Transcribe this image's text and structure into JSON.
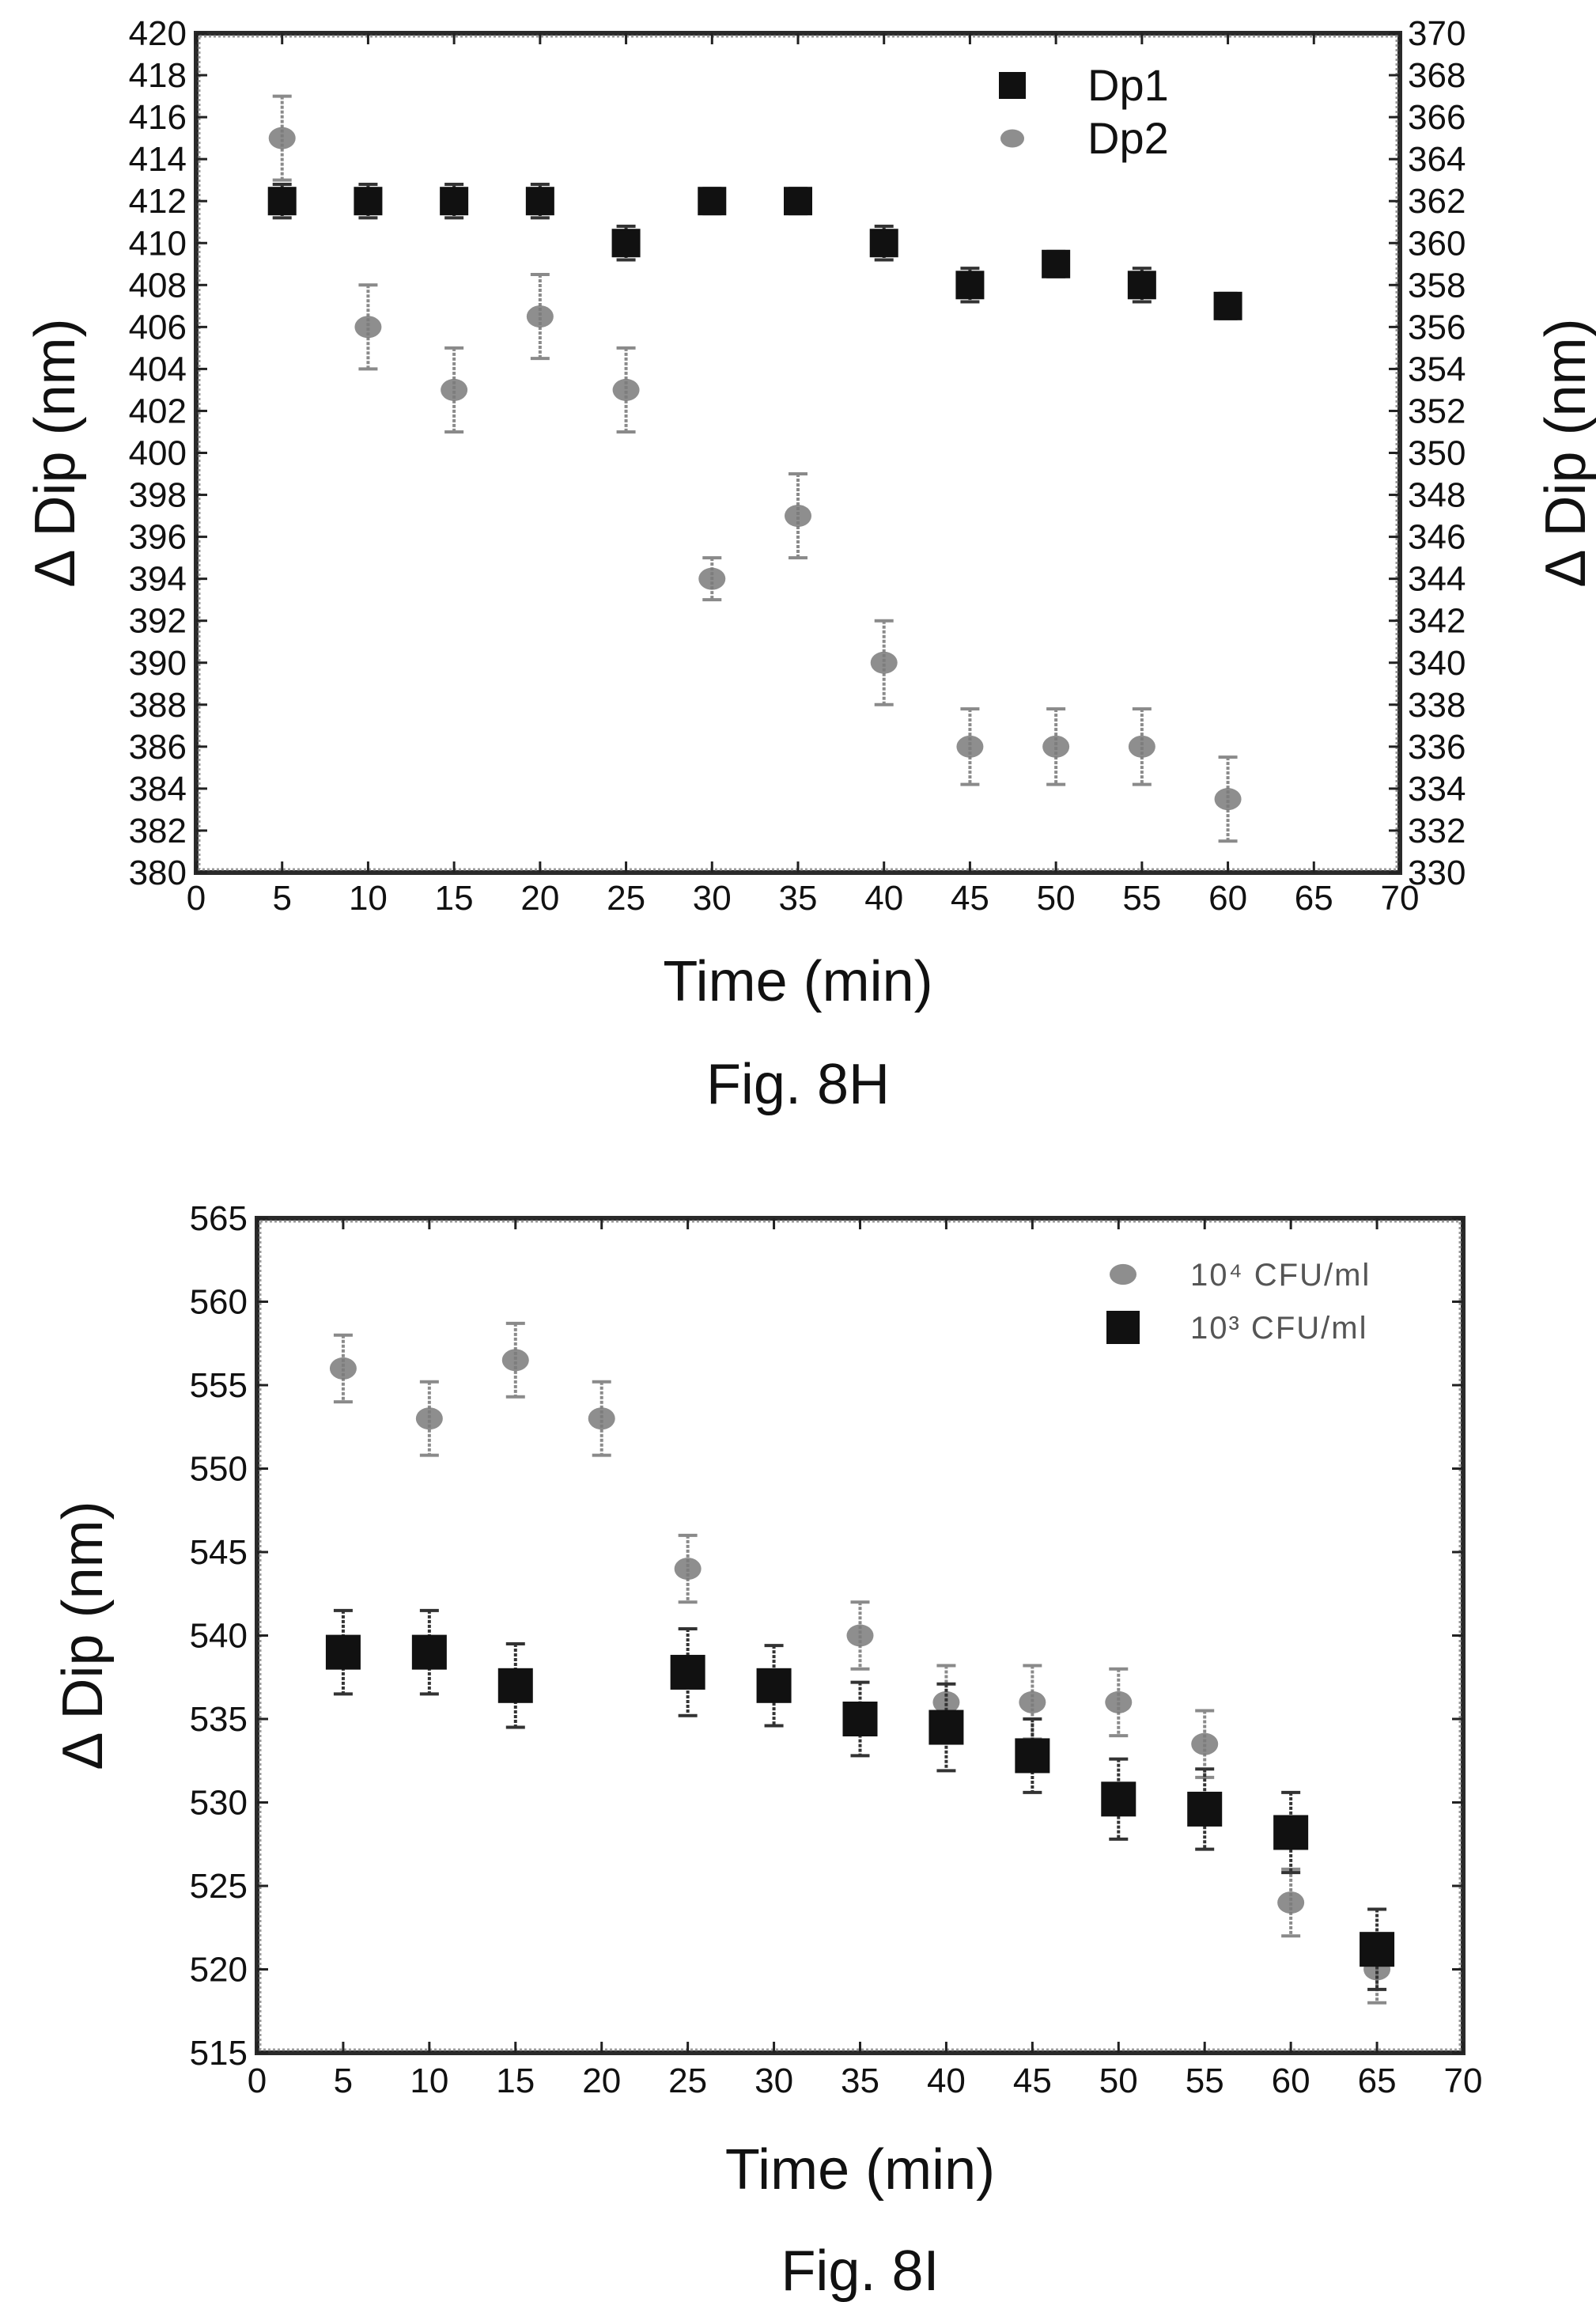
{
  "chart_data": [
    {
      "type": "scatter",
      "caption": "Fig. 8H",
      "xlabel": "Time (min)",
      "ylabel": "Δ Dip (nm)",
      "y2label": "Δ Dip (nm)",
      "xlim": [
        0,
        70
      ],
      "ylim": [
        380,
        420
      ],
      "y2lim": [
        330,
        370
      ],
      "x_ticks": [
        0,
        5,
        10,
        15,
        20,
        25,
        30,
        35,
        40,
        45,
        50,
        55,
        60,
        65,
        70
      ],
      "y_ticks": [
        380,
        382,
        384,
        386,
        388,
        390,
        392,
        394,
        396,
        398,
        400,
        402,
        404,
        406,
        408,
        410,
        412,
        414,
        416,
        418,
        420
      ],
      "y2_ticks": [
        330,
        332,
        334,
        336,
        338,
        340,
        342,
        344,
        346,
        348,
        350,
        352,
        354,
        356,
        358,
        360,
        362,
        364,
        366,
        368,
        370
      ],
      "legend_position": "top-right",
      "series": [
        {
          "name": "Dp1",
          "marker": "square",
          "color": "#111111",
          "axis": "left",
          "x": [
            5,
            10,
            15,
            20,
            25,
            30,
            35,
            40,
            45,
            50,
            55,
            60
          ],
          "y": [
            412,
            412,
            412,
            412,
            410,
            412,
            412,
            410,
            408,
            409,
            408,
            407
          ],
          "error": [
            0.8,
            0.8,
            0.8,
            0.8,
            0.8,
            0.6,
            0.6,
            0.8,
            0.8,
            0.6,
            0.8,
            0.6
          ]
        },
        {
          "name": "Dp2",
          "marker": "circle",
          "color": "#7a7a7a",
          "axis": "right",
          "x": [
            5,
            10,
            15,
            20,
            25,
            30,
            35,
            40,
            45,
            50,
            55,
            60
          ],
          "y": [
            365,
            356,
            353,
            356.5,
            353,
            344,
            347,
            340,
            336,
            336,
            336,
            333.5
          ],
          "error": [
            2,
            2,
            2,
            2,
            2,
            1,
            2,
            2,
            1.8,
            1.8,
            1.8,
            2
          ]
        }
      ]
    },
    {
      "type": "scatter",
      "caption": "Fig. 8I",
      "xlabel": "Time (min)",
      "ylabel": "Δ Dip (nm)",
      "xlim": [
        0,
        70
      ],
      "ylim": [
        515,
        565
      ],
      "x_ticks": [
        0,
        5,
        10,
        15,
        20,
        25,
        30,
        35,
        40,
        45,
        50,
        55,
        60,
        65,
        70
      ],
      "y_ticks": [
        515,
        520,
        525,
        530,
        535,
        540,
        545,
        550,
        555,
        560,
        565
      ],
      "legend_position": "top-right",
      "series": [
        {
          "name": "10⁴ CFU/ml",
          "marker": "circle",
          "color": "#7a7a7a",
          "x": [
            5,
            10,
            15,
            20,
            25,
            35,
            40,
            45,
            50,
            55,
            60,
            65
          ],
          "y": [
            556,
            553,
            556.5,
            553,
            544,
            540,
            536,
            536,
            536,
            533.5,
            524,
            520
          ],
          "error": [
            2,
            2.2,
            2.2,
            2.2,
            2,
            2,
            2.2,
            2.2,
            2,
            2,
            2,
            2
          ]
        },
        {
          "name": "10³ CFU/ml",
          "marker": "square",
          "color": "#111111",
          "x": [
            5,
            10,
            15,
            25,
            30,
            35,
            40,
            45,
            50,
            55,
            60,
            65
          ],
          "y": [
            539,
            539,
            537,
            537.8,
            537,
            535,
            534.5,
            532.8,
            530.2,
            529.6,
            528.2,
            521.2
          ],
          "error": [
            2.5,
            2.5,
            2.5,
            2.6,
            2.4,
            2.2,
            2.6,
            2.2,
            2.4,
            2.4,
            2.4,
            2.4
          ]
        }
      ]
    }
  ]
}
